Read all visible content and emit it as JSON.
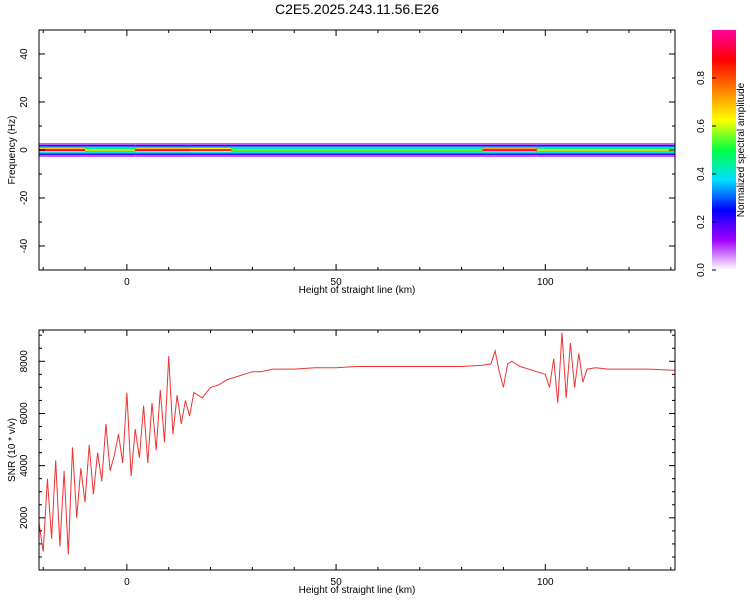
{
  "title": "C2E5.2025.243.11.56.E26",
  "chart_data": [
    {
      "type": "heatmap",
      "xlabel": "Height of straight line (km)",
      "ylabel": "Frequency (Hz)",
      "xlim": [
        -21,
        131
      ],
      "ylim": [
        -50,
        50
      ],
      "xticks": [
        0,
        50,
        100
      ],
      "yticks": [
        -40,
        -20,
        0,
        20,
        40
      ],
      "colorbar": {
        "label": "Normalized spectral amplitude",
        "range": [
          0,
          1
        ],
        "ticks": [
          0.0,
          0.2,
          0.4,
          0.6,
          0.8
        ],
        "colors": [
          "#ffffff",
          "#a000ff",
          "#0000ff",
          "#00e0ff",
          "#00ff40",
          "#ffff00",
          "#ff8000",
          "#ff0000",
          "#ff00a0"
        ]
      },
      "band": {
        "center_hz": 0,
        "ranges": [
          {
            "x": [
              -21,
              -10
            ],
            "level": 0.9
          },
          {
            "x": [
              -10,
              2
            ],
            "level": 0.6
          },
          {
            "x": [
              2,
              15
            ],
            "level": 0.9
          },
          {
            "x": [
              15,
              25
            ],
            "level": 0.85
          },
          {
            "x": [
              25,
              85
            ],
            "level": 0.55
          },
          {
            "x": [
              85,
              98
            ],
            "level": 0.95
          },
          {
            "x": [
              98,
              131
            ],
            "level": 0.6
          }
        ]
      }
    },
    {
      "type": "line",
      "xlabel": "Height of straight line (km)",
      "ylabel": "SNR (10 * v/v)",
      "xlim": [
        -21,
        131
      ],
      "ylim": [
        0,
        9200
      ],
      "xticks": [
        0,
        50,
        100
      ],
      "yticks": [
        2000,
        4000,
        6000,
        8000
      ],
      "color": "#ee3333",
      "points": [
        [
          -21,
          1800
        ],
        [
          -20,
          700
        ],
        [
          -19,
          3500
        ],
        [
          -18,
          1200
        ],
        [
          -17,
          4200
        ],
        [
          -16,
          900
        ],
        [
          -15,
          3800
        ],
        [
          -14,
          600
        ],
        [
          -13,
          4700
        ],
        [
          -12,
          2000
        ],
        [
          -11,
          3900
        ],
        [
          -10,
          2600
        ],
        [
          -9,
          4800
        ],
        [
          -8,
          2900
        ],
        [
          -7,
          4500
        ],
        [
          -6,
          3400
        ],
        [
          -5,
          5600
        ],
        [
          -4,
          3800
        ],
        [
          -3,
          4400
        ],
        [
          -2,
          5200
        ],
        [
          -1,
          4100
        ],
        [
          0,
          6800
        ],
        [
          1,
          3600
        ],
        [
          2,
          5400
        ],
        [
          3,
          4300
        ],
        [
          4,
          6300
        ],
        [
          5,
          4100
        ],
        [
          6,
          6400
        ],
        [
          7,
          4600
        ],
        [
          8,
          6900
        ],
        [
          9,
          4900
        ],
        [
          10,
          8200
        ],
        [
          11,
          5200
        ],
        [
          12,
          6700
        ],
        [
          13,
          5600
        ],
        [
          14,
          6500
        ],
        [
          15,
          5900
        ],
        [
          16,
          6800
        ],
        [
          18,
          6600
        ],
        [
          20,
          7000
        ],
        [
          22,
          7100
        ],
        [
          24,
          7300
        ],
        [
          26,
          7400
        ],
        [
          28,
          7500
        ],
        [
          30,
          7600
        ],
        [
          32,
          7600
        ],
        [
          35,
          7700
        ],
        [
          40,
          7700
        ],
        [
          45,
          7750
        ],
        [
          50,
          7750
        ],
        [
          55,
          7800
        ],
        [
          60,
          7800
        ],
        [
          65,
          7800
        ],
        [
          70,
          7800
        ],
        [
          75,
          7800
        ],
        [
          80,
          7800
        ],
        [
          85,
          7850
        ],
        [
          87,
          7900
        ],
        [
          88,
          8400
        ],
        [
          89,
          7600
        ],
        [
          90,
          7000
        ],
        [
          91,
          7900
        ],
        [
          92,
          8000
        ],
        [
          94,
          7800
        ],
        [
          96,
          7700
        ],
        [
          98,
          7600
        ],
        [
          100,
          7500
        ],
        [
          101,
          7000
        ],
        [
          102,
          8100
        ],
        [
          103,
          6400
        ],
        [
          104,
          9100
        ],
        [
          105,
          6600
        ],
        [
          106,
          8700
        ],
        [
          107,
          7000
        ],
        [
          108,
          8300
        ],
        [
          109,
          7200
        ],
        [
          110,
          7700
        ],
        [
          112,
          7750
        ],
        [
          115,
          7700
        ],
        [
          120,
          7700
        ],
        [
          125,
          7700
        ],
        [
          131,
          7650
        ]
      ]
    }
  ]
}
